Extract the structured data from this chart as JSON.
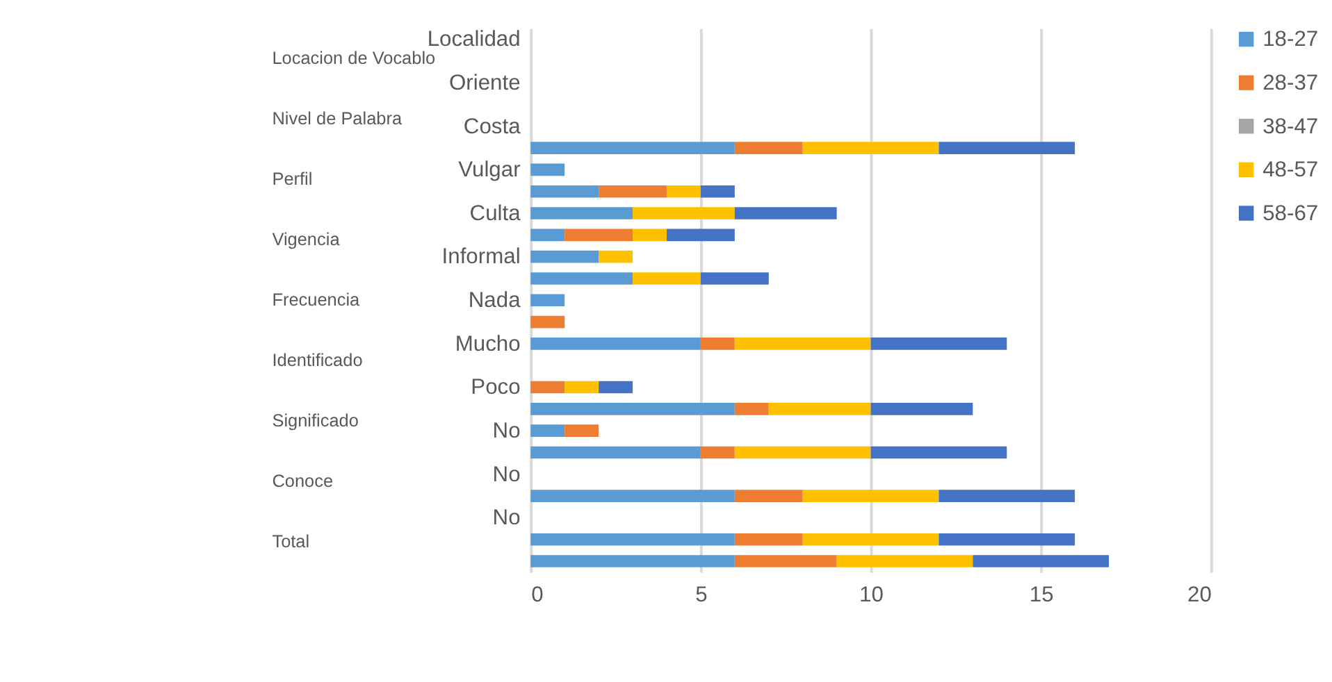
{
  "chart_data": {
    "type": "bar",
    "orientation": "horizontal",
    "stacked": true,
    "categories": [
      "Localidad",
      null,
      "Oriente",
      null,
      "Costa",
      null,
      "Vulgar",
      null,
      "Culta",
      null,
      "Informal",
      null,
      "Nada",
      null,
      "Mucho",
      null,
      "Poco",
      null,
      "No",
      null,
      "No",
      null,
      "No",
      null,
      null
    ],
    "series": [
      {
        "name": "18-27",
        "color": "#5b9bd5",
        "values": [
          null,
          null,
          null,
          null,
          null,
          6,
          1,
          2,
          3,
          1,
          2,
          3,
          1,
          null,
          5,
          null,
          null,
          6,
          1,
          5,
          null,
          6,
          null,
          6,
          6
        ]
      },
      {
        "name": "28-37",
        "color": "#ed7d31",
        "values": [
          null,
          null,
          null,
          null,
          null,
          2,
          null,
          2,
          null,
          2,
          null,
          null,
          null,
          1,
          1,
          null,
          1,
          1,
          1,
          1,
          null,
          2,
          null,
          2,
          3
        ]
      },
      {
        "name": "38-47",
        "color": "#a5a5a5",
        "values": [
          null,
          null,
          null,
          null,
          null,
          null,
          null,
          null,
          null,
          null,
          null,
          null,
          null,
          null,
          null,
          null,
          null,
          null,
          null,
          null,
          null,
          null,
          null,
          null,
          null
        ]
      },
      {
        "name": "48-57",
        "color": "#ffc000",
        "values": [
          null,
          null,
          null,
          null,
          null,
          4,
          null,
          1,
          3,
          1,
          1,
          2,
          null,
          null,
          4,
          null,
          1,
          3,
          null,
          4,
          null,
          4,
          null,
          4,
          4
        ]
      },
      {
        "name": "58-67",
        "color": "#4472c4",
        "values": [
          null,
          null,
          null,
          null,
          null,
          4,
          null,
          1,
          3,
          2,
          null,
          2,
          null,
          null,
          4,
          null,
          1,
          3,
          null,
          4,
          null,
          4,
          null,
          4,
          4
        ]
      }
    ],
    "xlim": [
      0,
      20
    ],
    "xticks": [
      0,
      5,
      10,
      15,
      20
    ],
    "grid": "x",
    "legend": "right",
    "annotations": [
      "Locacion de Vocablo",
      "Nivel de Palabra",
      "Perfil",
      "Vigencia",
      "Frecuencia",
      "Identificado",
      "Significado",
      "Conoce",
      "Total"
    ]
  }
}
